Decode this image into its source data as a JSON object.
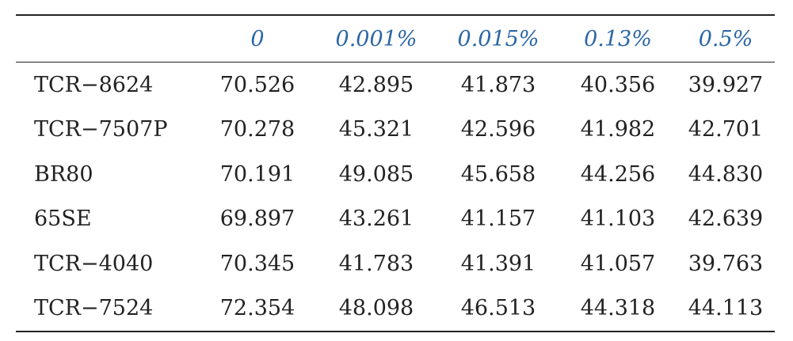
{
  "table": {
    "columns": [
      "",
      "0",
      "0.001%",
      "0.015%",
      "0.13%",
      "0.5%"
    ],
    "rows": [
      {
        "label": "TCR−8624",
        "values": [
          "70.526",
          "42.895",
          "41.873",
          "40.356",
          "39.927"
        ]
      },
      {
        "label": "TCR−7507P",
        "values": [
          "70.278",
          "45.321",
          "42.596",
          "41.982",
          "42.701"
        ]
      },
      {
        "label": "BR80",
        "values": [
          "70.191",
          "49.085",
          "45.658",
          "44.256",
          "44.830"
        ]
      },
      {
        "label": "65SE",
        "values": [
          "69.897",
          "43.261",
          "41.157",
          "41.103",
          "42.639"
        ]
      },
      {
        "label": "TCR−4040",
        "values": [
          "70.345",
          "41.783",
          "41.391",
          "41.057",
          "39.763"
        ]
      },
      {
        "label": "TCR−7524",
        "values": [
          "72.354",
          "48.098",
          "46.513",
          "44.318",
          "44.113"
        ]
      }
    ]
  },
  "colors": {
    "header_text": "#2a66a6",
    "body_text": "#222222",
    "rules": "#222222"
  }
}
